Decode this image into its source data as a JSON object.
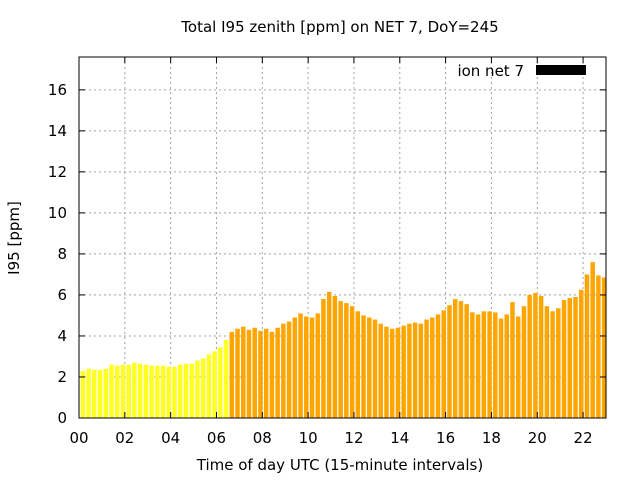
{
  "chart_data": {
    "type": "bar",
    "title": "Total I95 zenith [ppm] on NET 7, DoY=245",
    "xlabel": "Time of day UTC (15-minute intervals)",
    "ylabel": "I95 [ppm]",
    "xlim": [
      0,
      23
    ],
    "ylim": [
      0,
      17.6
    ],
    "xticks": [
      "00",
      "02",
      "04",
      "06",
      "08",
      "10",
      "12",
      "14",
      "16",
      "18",
      "20",
      "22"
    ],
    "yticks": [
      "0",
      "2",
      "4",
      "6",
      "8",
      "10",
      "12",
      "14",
      "16"
    ],
    "grid": true,
    "legend": {
      "label": "ion net 7",
      "position": "top-right",
      "color": "#000000"
    },
    "bar_interval_hours": 0.25,
    "series": [
      {
        "color": "#ffff22",
        "x": [
          0.0,
          0.25,
          0.5,
          0.75,
          1.0,
          1.25,
          1.5,
          1.75,
          2.0,
          2.25,
          2.5,
          2.75,
          3.0,
          3.25,
          3.5,
          3.75,
          4.0,
          4.25,
          4.5,
          4.75,
          5.0,
          5.25,
          5.5,
          5.75,
          6.0,
          6.25
        ],
        "values": [
          2.3,
          2.4,
          2.35,
          2.35,
          2.4,
          2.6,
          2.55,
          2.6,
          2.6,
          2.7,
          2.65,
          2.6,
          2.55,
          2.55,
          2.55,
          2.5,
          2.5,
          2.6,
          2.65,
          2.65,
          2.8,
          2.9,
          3.1,
          3.25,
          3.45,
          3.8
        ]
      },
      {
        "color": "#ffa500",
        "x": [
          6.5,
          6.75,
          7.0,
          7.25,
          7.5,
          7.75,
          8.0,
          8.25,
          8.5,
          8.75,
          9.0,
          9.25,
          9.5,
          9.75,
          10.0,
          10.25,
          10.5,
          10.75,
          11.0,
          11.25,
          11.5,
          11.75,
          12.0,
          12.25,
          12.5,
          12.75,
          13.0,
          13.25,
          13.5,
          13.75,
          14.0,
          14.25,
          14.5,
          14.75,
          15.0,
          15.25,
          15.5,
          15.75,
          16.0,
          16.25,
          16.5,
          16.75,
          17.0,
          17.25,
          17.5,
          17.75,
          18.0,
          18.25,
          18.5,
          18.75,
          19.0,
          19.25,
          19.5,
          19.75,
          20.0,
          20.25,
          20.5,
          20.75,
          21.0,
          21.25,
          21.5,
          21.75,
          22.0,
          22.25,
          22.5,
          22.75
        ],
        "values": [
          4.2,
          4.35,
          4.45,
          4.3,
          4.4,
          4.25,
          4.35,
          4.2,
          4.4,
          4.6,
          4.7,
          4.9,
          5.1,
          4.95,
          4.9,
          5.1,
          5.8,
          6.15,
          5.95,
          5.7,
          5.6,
          5.45,
          5.2,
          5.0,
          4.9,
          4.8,
          4.6,
          4.45,
          4.35,
          4.4,
          4.5,
          4.6,
          4.65,
          4.6,
          4.8,
          4.9,
          5.05,
          5.25,
          5.5,
          5.8,
          5.7,
          5.55,
          5.15,
          5.05,
          5.2,
          5.2,
          5.15,
          4.85,
          5.05,
          5.65,
          4.95,
          5.45,
          6.0,
          6.1,
          5.95,
          5.45,
          5.2,
          5.35,
          5.75,
          5.85,
          5.9,
          6.25,
          7.0,
          7.6,
          6.95,
          6.85
        ]
      }
    ]
  }
}
